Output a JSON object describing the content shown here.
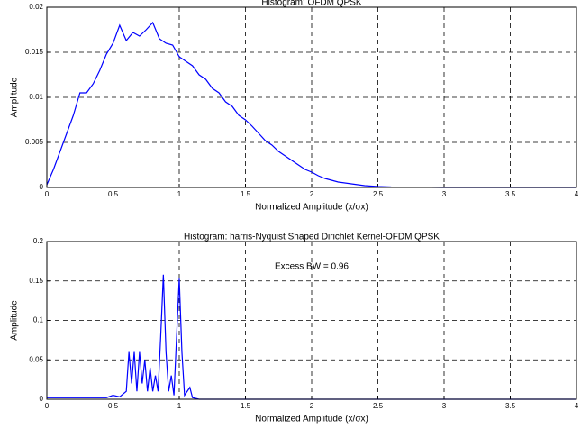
{
  "chart_data": [
    {
      "type": "line",
      "title": "Histogram: OFDM QPSK",
      "xlabel": "Normalized Amplitude (x/σx)",
      "ylabel": "Amplitude",
      "xlim": [
        0,
        4
      ],
      "ylim": [
        0,
        0.02
      ],
      "xticks": [
        0,
        0.5,
        1,
        1.5,
        2,
        2.5,
        3,
        3.5,
        4
      ],
      "yticks": [
        0,
        0.005,
        0.01,
        0.015,
        0.02
      ],
      "grid": true,
      "series": [
        {
          "color": "#0000ff",
          "x": [
            0,
            0.05,
            0.1,
            0.15,
            0.2,
            0.25,
            0.3,
            0.35,
            0.4,
            0.45,
            0.5,
            0.55,
            0.6,
            0.65,
            0.7,
            0.75,
            0.8,
            0.85,
            0.9,
            0.95,
            1.0,
            1.05,
            1.1,
            1.15,
            1.2,
            1.25,
            1.3,
            1.35,
            1.4,
            1.45,
            1.5,
            1.55,
            1.6,
            1.65,
            1.7,
            1.75,
            1.8,
            1.85,
            1.9,
            1.95,
            2.0,
            2.05,
            2.1,
            2.15,
            2.2,
            2.3,
            2.4,
            2.5,
            2.6,
            3,
            4
          ],
          "values": [
            0.0003,
            0.002,
            0.004,
            0.006,
            0.008,
            0.0105,
            0.0105,
            0.0115,
            0.013,
            0.0148,
            0.016,
            0.018,
            0.0163,
            0.0172,
            0.0168,
            0.0175,
            0.0183,
            0.0165,
            0.016,
            0.0158,
            0.0145,
            0.014,
            0.0135,
            0.0125,
            0.012,
            0.011,
            0.0105,
            0.0095,
            0.009,
            0.008,
            0.0075,
            0.0068,
            0.006,
            0.0052,
            0.0047,
            0.004,
            0.0035,
            0.003,
            0.0025,
            0.002,
            0.0017,
            0.0013,
            0.001,
            0.0008,
            0.0006,
            0.0004,
            0.0002,
            0.0001,
            5e-05,
            0,
            0
          ]
        }
      ]
    },
    {
      "type": "line",
      "title": "Histogram: harris-Nyquist Shaped Dirichlet Kernel-OFDM QPSK",
      "xlabel": "Normalized Amplitude (x/σx)",
      "ylabel": "Amplitude",
      "annotation": "Excess BW = 0.96",
      "xlim": [
        0,
        4
      ],
      "ylim": [
        0,
        0.2
      ],
      "xticks": [
        0,
        0.5,
        1,
        1.5,
        2,
        2.5,
        3,
        3.5,
        4
      ],
      "yticks": [
        0,
        0.05,
        0.1,
        0.15,
        0.2
      ],
      "grid": true,
      "series": [
        {
          "color": "#0000ff",
          "x": [
            0,
            0.45,
            0.5,
            0.55,
            0.6,
            0.62,
            0.64,
            0.66,
            0.68,
            0.7,
            0.72,
            0.74,
            0.76,
            0.78,
            0.8,
            0.82,
            0.84,
            0.86,
            0.88,
            0.9,
            0.92,
            0.94,
            0.96,
            0.98,
            1.0,
            1.02,
            1.04,
            1.06,
            1.08,
            1.1,
            1.15,
            4
          ],
          "values": [
            0.002,
            0.002,
            0.005,
            0.003,
            0.01,
            0.06,
            0.02,
            0.06,
            0.01,
            0.06,
            0.02,
            0.05,
            0.01,
            0.04,
            0.01,
            0.03,
            0.01,
            0.08,
            0.158,
            0.06,
            0.01,
            0.03,
            0.005,
            0.08,
            0.153,
            0.06,
            0.005,
            0.01,
            0.015,
            0.002,
            0,
            0
          ]
        }
      ]
    }
  ]
}
